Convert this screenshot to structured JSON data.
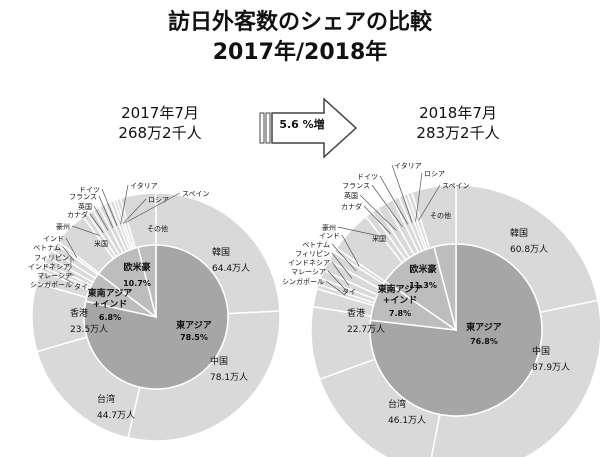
{
  "title_line1": "訪日外客数のシェアの比較",
  "title_line2": "2017年/2018年",
  "arrow_label": "5.6 %増",
  "colors": {
    "outer_ring": "#d9d9d9",
    "inner_group": "#bdbdbd",
    "center_disc": "#a6a6a6",
    "separator": "#ffffff",
    "leader": "#555555"
  },
  "chart_data": [
    {
      "type": "pie",
      "period_label": "2017年7月",
      "total_label": "268万2千人",
      "outer": [
        {
          "name": "韓国",
          "value_label": "64.4万人",
          "share": 0.24
        },
        {
          "name": "中国",
          "value_label": "78.1万人",
          "share": 0.291
        },
        {
          "name": "台湾",
          "value_label": "44.7万人",
          "share": 0.167
        },
        {
          "name": "香港",
          "value_label": "23.5万人",
          "share": 0.088
        },
        {
          "name": "タイ",
          "value_label": "",
          "share": 0.017
        },
        {
          "name": "シンガポール",
          "value_label": "",
          "share": 0.005
        },
        {
          "name": "マレーシア",
          "value_label": "",
          "share": 0.006
        },
        {
          "name": "インドネシア",
          "value_label": "",
          "share": 0.008
        },
        {
          "name": "フィリピン",
          "value_label": "",
          "share": 0.01
        },
        {
          "name": "ベトナム",
          "value_label": "",
          "share": 0.01
        },
        {
          "name": "インド",
          "value_label": "",
          "share": 0.004
        },
        {
          "name": "米国",
          "value_label": "",
          "share": 0.045
        },
        {
          "name": "豪州",
          "value_label": "",
          "share": 0.007
        },
        {
          "name": "カナダ",
          "value_label": "",
          "share": 0.008
        },
        {
          "name": "英国",
          "value_label": "",
          "share": 0.009
        },
        {
          "name": "フランス",
          "value_label": "",
          "share": 0.008
        },
        {
          "name": "ドイツ",
          "value_label": "",
          "share": 0.007
        },
        {
          "name": "イタリア",
          "value_label": "",
          "share": 0.005
        },
        {
          "name": "ロシア",
          "value_label": "",
          "share": 0.004
        },
        {
          "name": "スペイン",
          "value_label": "",
          "share": 0.005
        },
        {
          "name": "その他",
          "value_label": "",
          "share": 0.046
        }
      ],
      "inner": [
        {
          "name": "東アジア",
          "share_label": "78.5%",
          "share": 0.785
        },
        {
          "name": "東南アジア\n+インド",
          "share_label": "6.8%",
          "share": 0.068
        },
        {
          "name": "欧米豪",
          "share_label": "10.7%",
          "share": 0.107
        },
        {
          "name": "",
          "share_label": "",
          "share": 0.04
        }
      ]
    },
    {
      "type": "pie",
      "period_label": "2018年7月",
      "total_label": "283万2千人",
      "outer": [
        {
          "name": "韓国",
          "value_label": "60.8万人",
          "share": 0.215
        },
        {
          "name": "中国",
          "value_label": "87.9万人",
          "share": 0.31
        },
        {
          "name": "台湾",
          "value_label": "46.1万人",
          "share": 0.163
        },
        {
          "name": "香港",
          "value_label": "22.7万人",
          "share": 0.08
        },
        {
          "name": "タイ",
          "value_label": "",
          "share": 0.02
        },
        {
          "name": "シンガポール",
          "value_label": "",
          "share": 0.005
        },
        {
          "name": "マレーシア",
          "value_label": "",
          "share": 0.007
        },
        {
          "name": "インドネシア",
          "value_label": "",
          "share": 0.009
        },
        {
          "name": "フィリピン",
          "value_label": "",
          "share": 0.012
        },
        {
          "name": "ベトナム",
          "value_label": "",
          "share": 0.011
        },
        {
          "name": "インド",
          "value_label": "",
          "share": 0.005
        },
        {
          "name": "米国",
          "value_label": "",
          "share": 0.047
        },
        {
          "name": "豪州",
          "value_label": "",
          "share": 0.008
        },
        {
          "name": "カナダ",
          "value_label": "",
          "share": 0.008
        },
        {
          "name": "英国",
          "value_label": "",
          "share": 0.01
        },
        {
          "name": "フランス",
          "value_label": "",
          "share": 0.009
        },
        {
          "name": "ドイツ",
          "value_label": "",
          "share": 0.007
        },
        {
          "name": "イタリア",
          "value_label": "",
          "share": 0.006
        },
        {
          "name": "ロシア",
          "value_label": "",
          "share": 0.004
        },
        {
          "name": "スペイン",
          "value_label": "",
          "share": 0.005
        },
        {
          "name": "その他",
          "value_label": "",
          "share": 0.049
        }
      ],
      "inner": [
        {
          "name": "東アジア",
          "share_label": "76.8%",
          "share": 0.768
        },
        {
          "name": "東南アジア\n+インド",
          "share_label": "7.8%",
          "share": 0.078
        },
        {
          "name": "欧米豪",
          "share_label": "11.3%",
          "share": 0.113
        },
        {
          "name": "",
          "share_label": "",
          "share": 0.041
        }
      ]
    }
  ]
}
